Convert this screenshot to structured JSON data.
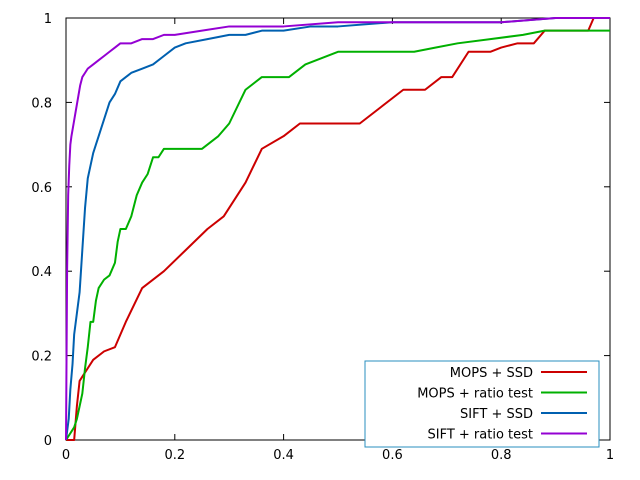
{
  "chart_data": {
    "type": "line",
    "title": "",
    "xlabel": "",
    "ylabel": "",
    "xlim": [
      0,
      1
    ],
    "ylim": [
      0,
      1
    ],
    "grid": false,
    "legend_position": "bottom-right",
    "x_ticks": [
      "0",
      "0.2",
      "0.4",
      "0.6",
      "0.8",
      "1"
    ],
    "y_ticks": [
      "0",
      "0.2",
      "0.4",
      "0.6",
      "0.8",
      "1"
    ],
    "series": [
      {
        "name": "MOPS + SSD",
        "color": "#cc0000",
        "x": [
          0.0,
          0.015,
          0.02,
          0.025,
          0.03,
          0.04,
          0.05,
          0.07,
          0.09,
          0.11,
          0.14,
          0.18,
          0.22,
          0.26,
          0.29,
          0.33,
          0.36,
          0.4,
          0.43,
          0.48,
          0.54,
          0.58,
          0.62,
          0.66,
          0.69,
          0.71,
          0.74,
          0.78,
          0.8,
          0.83,
          0.86,
          0.88,
          0.92,
          0.96,
          0.97,
          1.0
        ],
        "y": [
          0.0,
          0.0,
          0.08,
          0.14,
          0.15,
          0.17,
          0.19,
          0.21,
          0.22,
          0.28,
          0.36,
          0.4,
          0.45,
          0.5,
          0.53,
          0.61,
          0.69,
          0.72,
          0.75,
          0.75,
          0.75,
          0.79,
          0.83,
          0.83,
          0.86,
          0.86,
          0.92,
          0.92,
          0.93,
          0.94,
          0.94,
          0.97,
          0.97,
          0.97,
          1.0,
          1.0
        ]
      },
      {
        "name": "MOPS + ratio test",
        "color": "#00b000",
        "x": [
          0.0,
          0.01,
          0.015,
          0.02,
          0.025,
          0.03,
          0.035,
          0.04,
          0.045,
          0.05,
          0.055,
          0.06,
          0.07,
          0.08,
          0.09,
          0.095,
          0.1,
          0.11,
          0.12,
          0.13,
          0.14,
          0.15,
          0.16,
          0.17,
          0.18,
          0.2,
          0.22,
          0.25,
          0.28,
          0.3,
          0.33,
          0.36,
          0.41,
          0.44,
          0.5,
          0.56,
          0.64,
          0.68,
          0.72,
          0.78,
          0.84,
          0.88,
          0.92,
          0.96,
          1.0
        ],
        "y": [
          0.0,
          0.02,
          0.03,
          0.05,
          0.08,
          0.11,
          0.17,
          0.22,
          0.28,
          0.28,
          0.33,
          0.36,
          0.38,
          0.39,
          0.42,
          0.47,
          0.5,
          0.5,
          0.53,
          0.58,
          0.61,
          0.63,
          0.67,
          0.67,
          0.69,
          0.69,
          0.69,
          0.69,
          0.72,
          0.75,
          0.83,
          0.86,
          0.86,
          0.89,
          0.92,
          0.92,
          0.92,
          0.93,
          0.94,
          0.95,
          0.96,
          0.97,
          0.97,
          0.97,
          0.97
        ]
      },
      {
        "name": "SIFT + SSD",
        "color": "#0060b0",
        "x": [
          0.0,
          0.005,
          0.008,
          0.012,
          0.015,
          0.02,
          0.025,
          0.03,
          0.035,
          0.04,
          0.045,
          0.05,
          0.055,
          0.06,
          0.07,
          0.08,
          0.09,
          0.1,
          0.11,
          0.12,
          0.14,
          0.16,
          0.18,
          0.2,
          0.22,
          0.26,
          0.3,
          0.33,
          0.36,
          0.4,
          0.45,
          0.5,
          0.6,
          0.7,
          0.8,
          0.9,
          1.0
        ],
        "y": [
          0.0,
          0.05,
          0.12,
          0.18,
          0.25,
          0.3,
          0.35,
          0.45,
          0.55,
          0.62,
          0.65,
          0.68,
          0.7,
          0.72,
          0.76,
          0.8,
          0.82,
          0.85,
          0.86,
          0.87,
          0.88,
          0.89,
          0.91,
          0.93,
          0.94,
          0.95,
          0.96,
          0.96,
          0.97,
          0.97,
          0.98,
          0.98,
          0.99,
          0.99,
          0.99,
          1.0,
          1.0
        ]
      },
      {
        "name": "SIFT + ratio test",
        "color": "#9400d3",
        "x": [
          0.0,
          0.002,
          0.004,
          0.006,
          0.008,
          0.01,
          0.014,
          0.018,
          0.022,
          0.026,
          0.03,
          0.035,
          0.04,
          0.05,
          0.06,
          0.07,
          0.08,
          0.09,
          0.1,
          0.12,
          0.14,
          0.16,
          0.18,
          0.2,
          0.25,
          0.3,
          0.35,
          0.4,
          0.5,
          0.6,
          0.7,
          0.8,
          0.9,
          1.0
        ],
        "y": [
          0.0,
          0.4,
          0.58,
          0.65,
          0.7,
          0.72,
          0.75,
          0.78,
          0.81,
          0.84,
          0.86,
          0.87,
          0.88,
          0.89,
          0.9,
          0.91,
          0.92,
          0.93,
          0.94,
          0.94,
          0.95,
          0.95,
          0.96,
          0.96,
          0.97,
          0.98,
          0.98,
          0.98,
          0.99,
          0.99,
          0.99,
          0.99,
          1.0,
          1.0
        ]
      }
    ]
  }
}
